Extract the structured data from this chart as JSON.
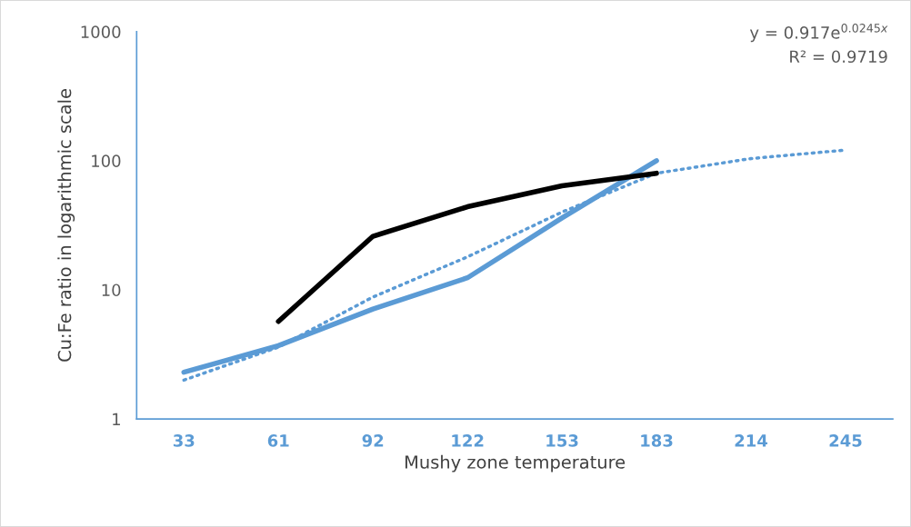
{
  "chart_data": {
    "type": "line",
    "xlabel": "Mushy zone temperature",
    "ylabel": "Cu:Fe ratio in logarithmic scale",
    "categories": [
      "33",
      "61",
      "92",
      "122",
      "153",
      "183",
      "214",
      "245"
    ],
    "series": [
      {
        "color": "#5b9bd5",
        "line_style": "solid",
        "values": [
          2.3,
          3.7,
          7.1,
          12.4,
          36,
          100,
          null,
          null
        ]
      },
      {
        "color": "#5b9bd5",
        "line_style": "dotted",
        "values": [
          2.0,
          3.6,
          8.8,
          18,
          40,
          80,
          104,
          121
        ]
      },
      {
        "color": "#000000",
        "line_style": "solid",
        "values": [
          null,
          5.7,
          26,
          44,
          64,
          80,
          null,
          null
        ]
      }
    ],
    "log": "y",
    "ylim": [
      1,
      1000
    ],
    "yticks": [
      1,
      10,
      100,
      1000
    ],
    "grid": false,
    "legend": false,
    "marker": "none",
    "annotations": [
      "y = 0.917e$^{0.0245x}$",
      "R² = 0.9719"
    ]
  }
}
